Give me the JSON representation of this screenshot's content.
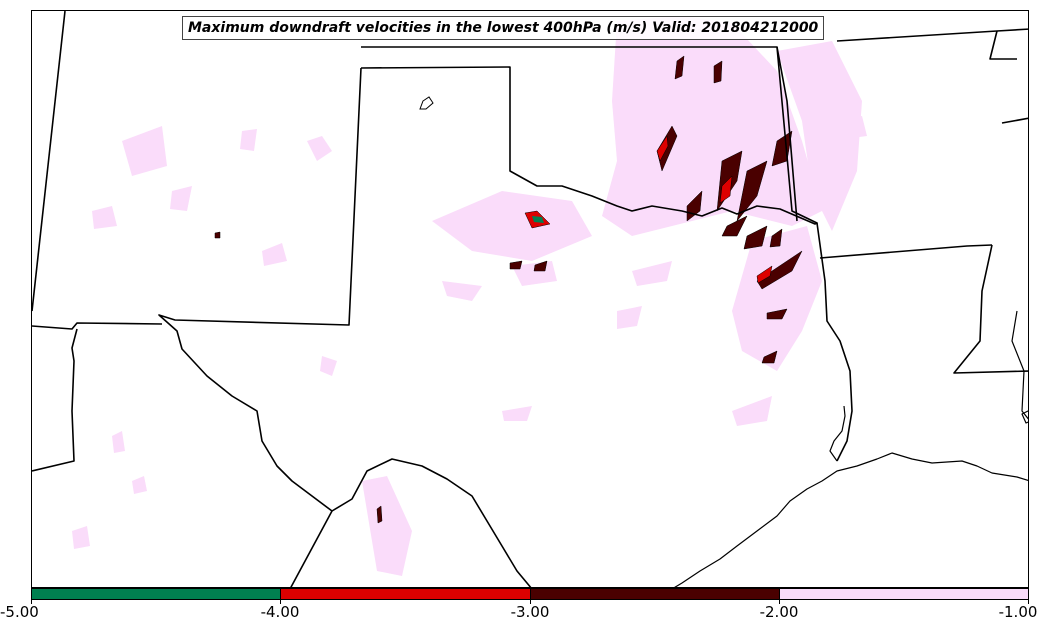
{
  "title": "Maximum downdraft velocities in the lowest 400hPa (m/s) Valid: 201804212000",
  "colorbar": {
    "colors": [
      "#008050",
      "#dd0000",
      "#4a0000",
      "#fadcfa"
    ],
    "ticks": [
      "-5.00",
      "-4.00",
      "-3.00",
      "-2.00",
      "-1.00"
    ]
  },
  "field_colors": {
    "light": "#fadcfa",
    "dark": "#4a0000",
    "red": "#dd0000",
    "green": "#008050"
  }
}
